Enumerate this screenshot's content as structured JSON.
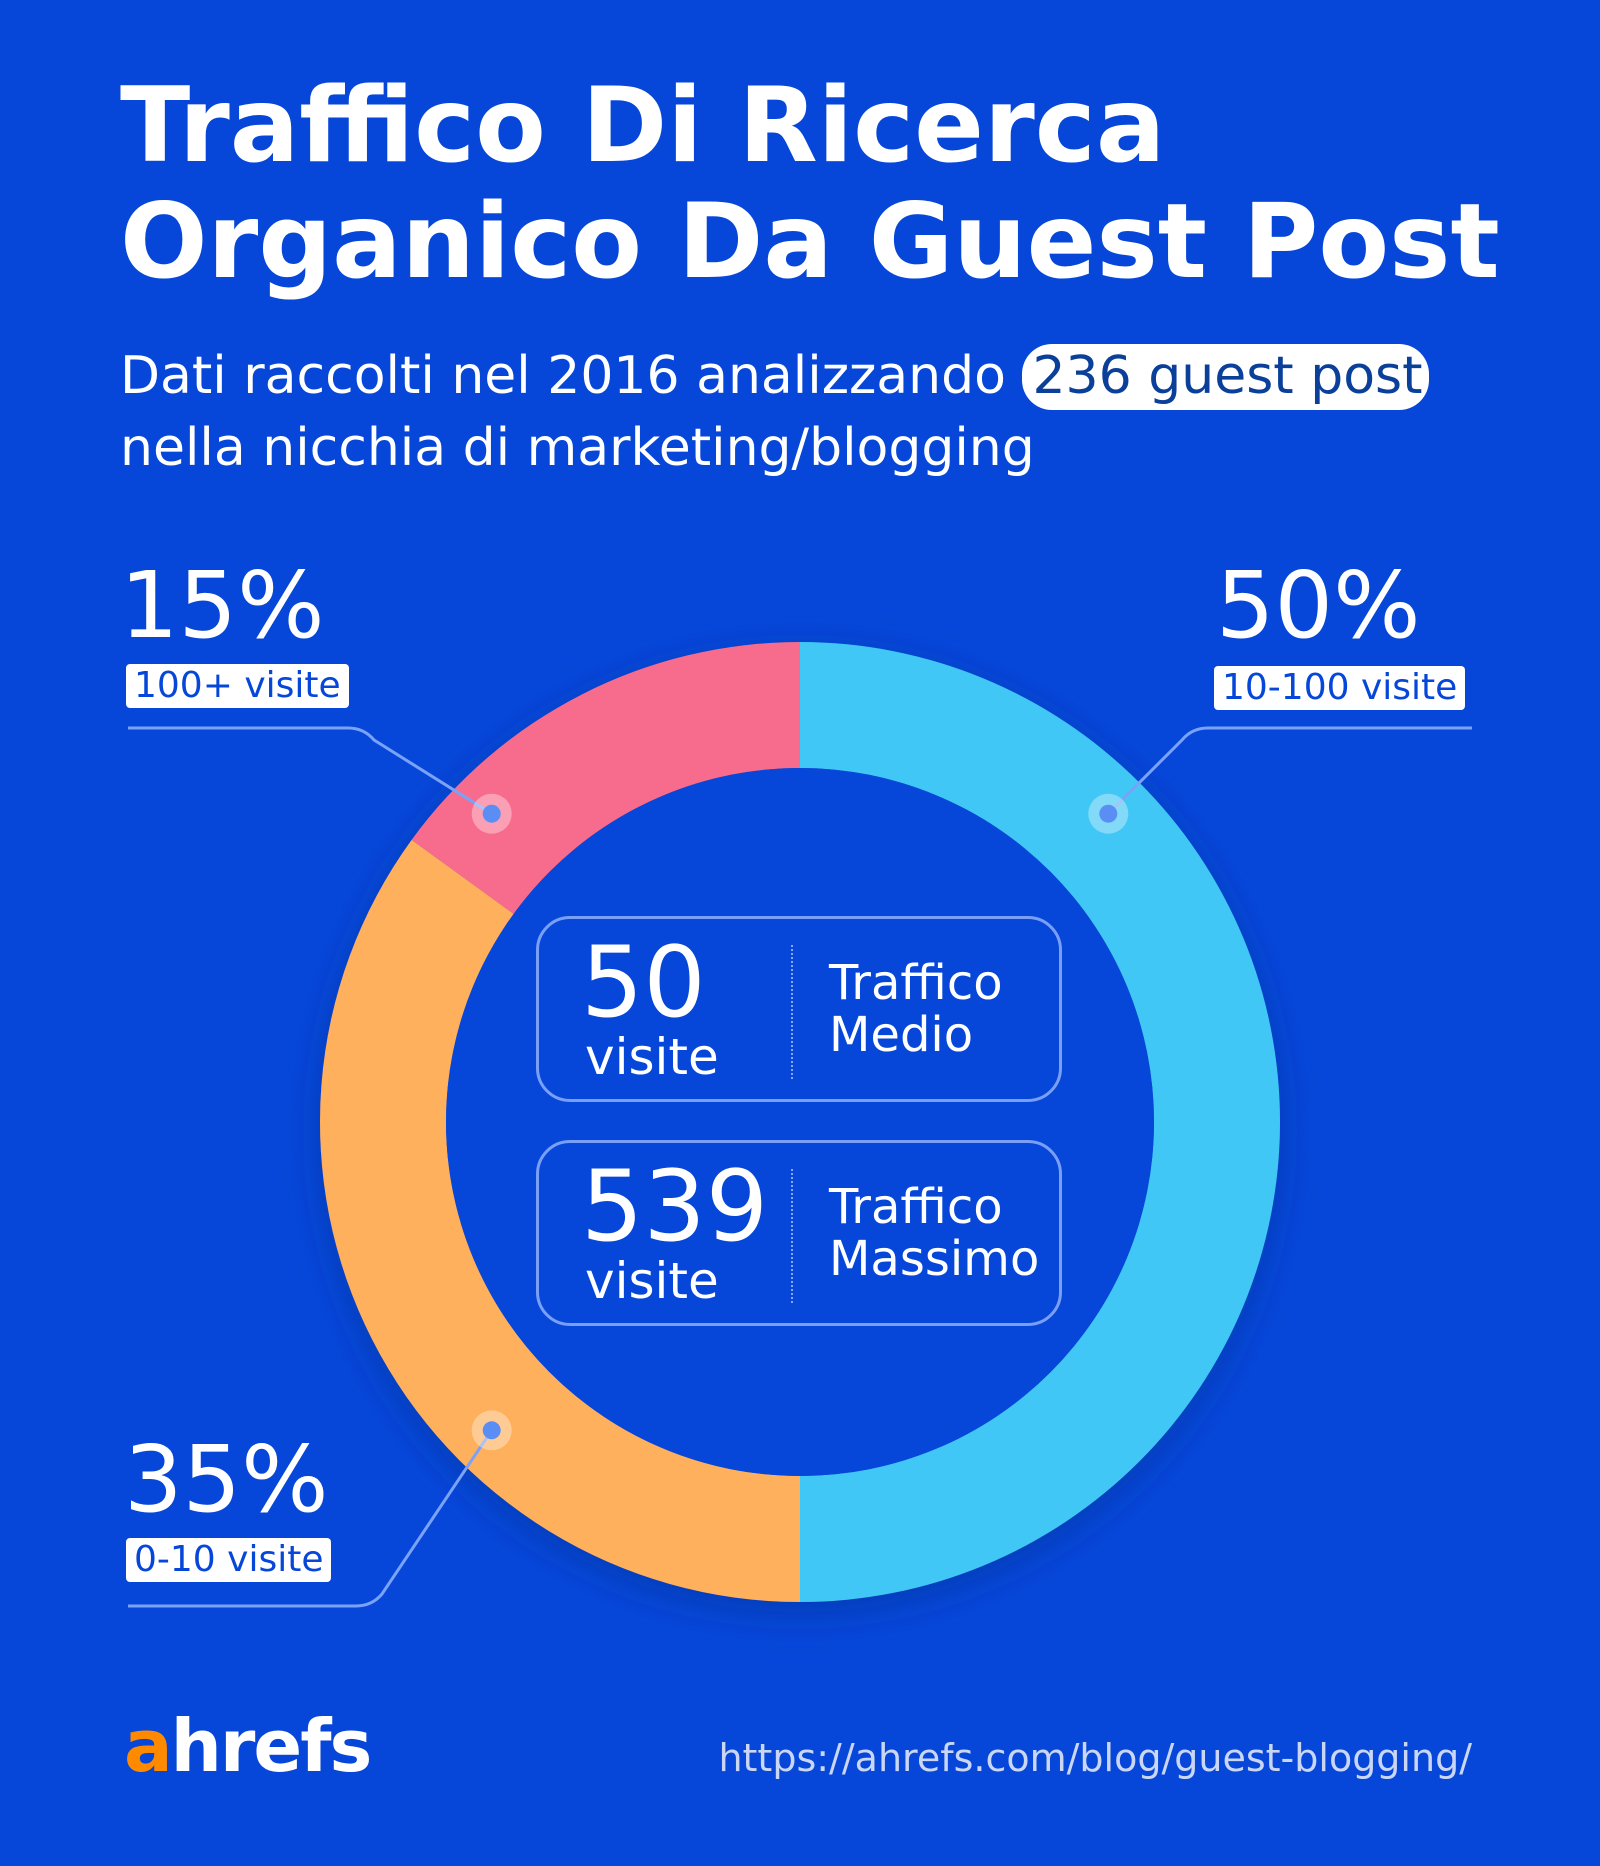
{
  "title_line1": "Traffico Di Ricerca",
  "title_line2": "Organico Da Guest Post",
  "subtitle_before": "Dati raccolti nel 2016 analizzando ",
  "subtitle_highlight": "236 guest post",
  "subtitle_after": "nella nicchia di marketing/blogging",
  "chart_data": {
    "type": "pie",
    "donut": true,
    "slices": [
      {
        "label": "10-100 visite",
        "percent_label": "50%",
        "value": 50,
        "color": "#3fc7f5"
      },
      {
        "label": "0-10 visite",
        "percent_label": "35%",
        "value": 35,
        "color": "#ffb05c"
      },
      {
        "label": "100+ visite",
        "percent_label": "15%",
        "value": 15,
        "color": "#f76c8c"
      }
    ]
  },
  "stats": [
    {
      "number": "50",
      "unit": "visite",
      "label_line1": "Traffico",
      "label_line2": "Medio"
    },
    {
      "number": "539",
      "unit": "visite",
      "label_line1": "Traffico",
      "label_line2": "Massimo"
    }
  ],
  "logo": {
    "first": "a",
    "rest": "hrefs"
  },
  "url": "https://ahrefs.com/blog/guest-blogging/"
}
